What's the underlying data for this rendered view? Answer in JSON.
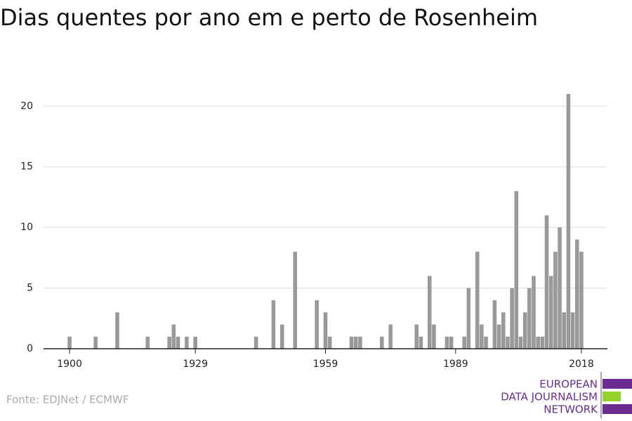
{
  "chart_data": {
    "type": "bar",
    "title": "Dias quentes por ano em e perto de Rosenheim",
    "x": [
      1900,
      1906,
      1911,
      1918,
      1923,
      1924,
      1925,
      1927,
      1929,
      1943,
      1947,
      1949,
      1952,
      1957,
      1959,
      1960,
      1965,
      1966,
      1967,
      1972,
      1974,
      1980,
      1981,
      1983,
      1984,
      1987,
      1988,
      1991,
      1992,
      1994,
      1995,
      1996,
      1998,
      1999,
      2000,
      2001,
      2002,
      2003,
      2004,
      2005,
      2006,
      2007,
      2008,
      2009,
      2010,
      2011,
      2012,
      2013,
      2014,
      2015,
      2016,
      2017,
      2018
    ],
    "values": [
      1,
      1,
      3,
      1,
      1,
      2,
      1,
      1,
      1,
      1,
      4,
      2,
      8,
      4,
      3,
      1,
      1,
      1,
      1,
      1,
      2,
      2,
      1,
      6,
      2,
      1,
      1,
      1,
      5,
      8,
      2,
      1,
      4,
      2,
      3,
      1,
      5,
      13,
      1,
      3,
      5,
      6,
      1,
      1,
      11,
      6,
      8,
      10,
      3,
      21,
      3,
      9,
      8
    ],
    "color": "#999999",
    "xlim": [
      1894,
      2024
    ],
    "xticks": [
      1900,
      1929,
      1959,
      1989,
      2018
    ],
    "ylim": [
      0,
      21
    ],
    "yticks": [
      0,
      5,
      10,
      15,
      20
    ],
    "grid": true,
    "source": "Fonte: EDJNet / ECMWF",
    "logo": [
      "EUROPEAN",
      "DATA JOURNALISM",
      "NETWORK"
    ]
  }
}
